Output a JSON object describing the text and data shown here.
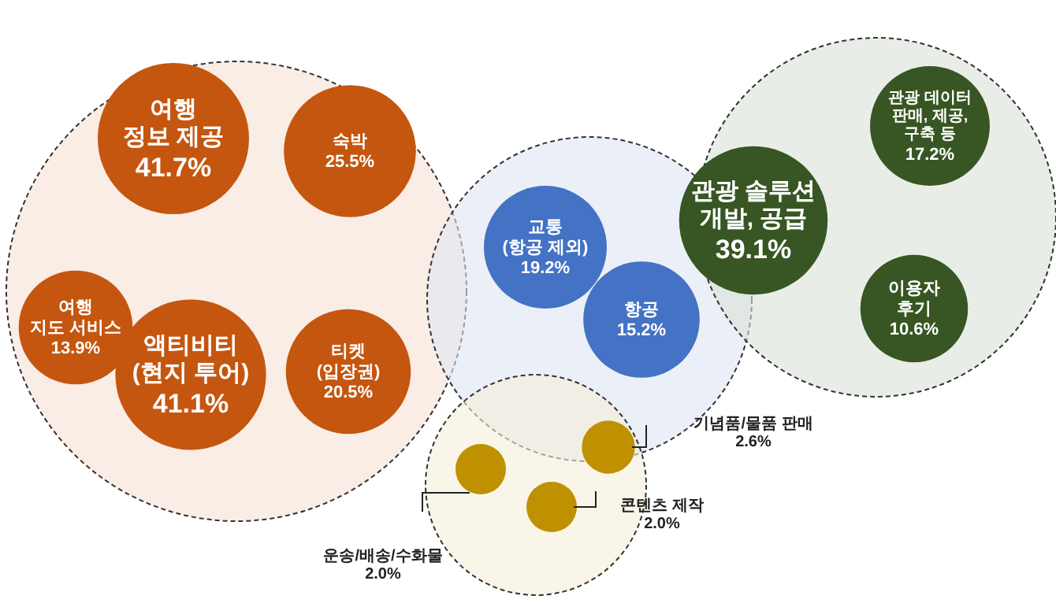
{
  "chart_data": {
    "type": "other",
    "categories": [
      "여행\n정보 제공",
      "숙박",
      "여행\n지도 서비스",
      "액티비티\n(현지 투어)",
      "티켓\n(입장권)",
      "교통\n(항공 제외)",
      "항공",
      "관광 솔루션\n개발, 공급",
      "관광 데이터\n판매, 제공,\n구축 등",
      "이용자\n후기",
      "기념품/물품 판매",
      "콘텐츠 제작",
      "운송/배송/수화물"
    ],
    "values": [
      41.7,
      25.5,
      13.9,
      41.1,
      20.5,
      19.2,
      15.2,
      39.1,
      17.2,
      10.6,
      2.6,
      2.0,
      2.0
    ],
    "value_labels": [
      "41.7%",
      "25.5%",
      "13.9%",
      "41.1%",
      "20.5%",
      "19.2%",
      "15.2%",
      "39.1%",
      "17.2%",
      "10.6%",
      "2.6%",
      "2.0%",
      "2.0%"
    ],
    "colors": [
      "#c5560f",
      "#c5560f",
      "#c5560f",
      "#c5560f",
      "#c5560f",
      "#4472c4",
      "#4472c4",
      "#375623",
      "#375623",
      "#375623",
      "#bf9000",
      "#bf9000",
      "#bf9000"
    ]
  }
}
